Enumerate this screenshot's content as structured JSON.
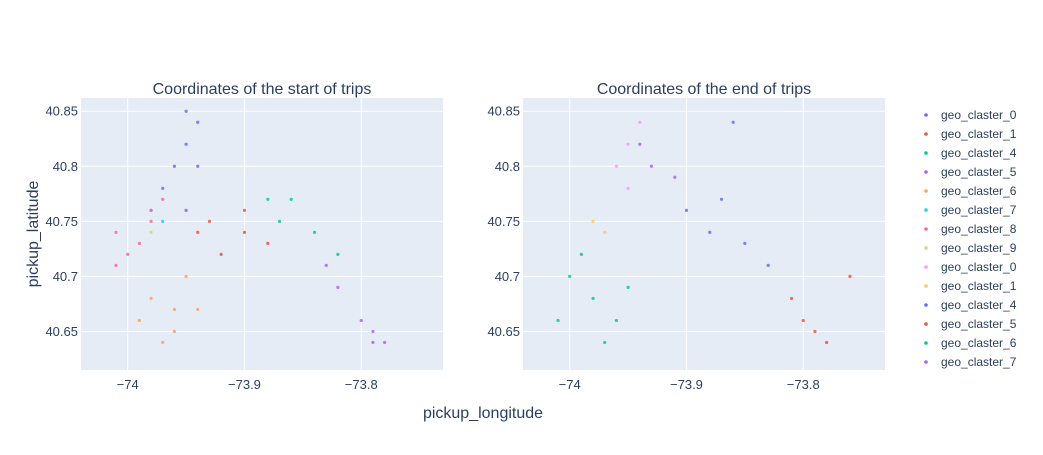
{
  "chart_data": [
    {
      "type": "scatter",
      "title": "Coordinates of the start of trips",
      "xlabel": "pickup_longitude",
      "ylabel": "pickup_latitude",
      "xlim": [
        -74.04,
        -73.73
      ],
      "ylim": [
        40.615,
        40.862
      ],
      "xticks": [
        -74.0,
        -73.9,
        -73.8
      ],
      "xtick_labels": [
        "−74",
        "−73.9",
        "−73.8"
      ],
      "yticks": [
        40.65,
        40.7,
        40.75,
        40.8,
        40.85
      ],
      "ytick_labels": [
        "40.65",
        "40.7",
        "40.75",
        "40.8",
        "40.85"
      ],
      "grid": true,
      "series": [
        {
          "name": "geo_claster_0",
          "color": "#636efa",
          "x": [
            -73.96,
            -73.95,
            -73.94,
            -73.97,
            -73.95,
            -73.94,
            -73.95
          ],
          "y": [
            40.8,
            40.82,
            40.84,
            40.78,
            40.76,
            40.8,
            40.85
          ]
        },
        {
          "name": "geo_claster_1",
          "color": "#ef553b",
          "x": [
            -73.93,
            -73.9,
            -73.88,
            -73.92,
            -73.9,
            -73.94
          ],
          "y": [
            40.75,
            40.74,
            40.73,
            40.72,
            40.76,
            40.74
          ]
        },
        {
          "name": "geo_claster_4",
          "color": "#00cc96",
          "x": [
            -73.88,
            -73.86,
            -73.84,
            -73.82,
            -73.87
          ],
          "y": [
            40.77,
            40.77,
            40.74,
            40.72,
            40.75
          ]
        },
        {
          "name": "geo_claster_5",
          "color": "#ab63fa",
          "x": [
            -73.8,
            -73.79,
            -73.78,
            -73.79,
            -73.82,
            -73.83
          ],
          "y": [
            40.66,
            40.65,
            40.64,
            40.64,
            40.69,
            40.71
          ]
        },
        {
          "name": "geo_claster_6",
          "color": "#ffa15a",
          "x": [
            -73.98,
            -73.96,
            -73.95,
            -73.99,
            -73.97,
            -73.94,
            -73.96
          ],
          "y": [
            40.68,
            40.67,
            40.7,
            40.66,
            40.64,
            40.67,
            40.65
          ]
        },
        {
          "name": "geo_claster_7",
          "color": "#19d3f3",
          "x": [
            -73.98,
            -73.97
          ],
          "y": [
            40.76,
            40.75
          ]
        },
        {
          "name": "geo_claster_8",
          "color": "#ff6692",
          "x": [
            -74.01,
            -73.99,
            -73.98,
            -73.97,
            -74.0,
            -74.01,
            -73.98
          ],
          "y": [
            40.71,
            40.73,
            40.75,
            40.77,
            40.72,
            40.74,
            40.76
          ]
        },
        {
          "name": "geo_claster_9",
          "color": "#b6e880",
          "x": [
            -73.98
          ],
          "y": [
            40.74
          ]
        }
      ]
    },
    {
      "type": "scatter",
      "title": "Coordinates of the end of trips",
      "xlabel": "pickup_longitude",
      "xlim": [
        -74.04,
        -73.73
      ],
      "ylim": [
        40.615,
        40.862
      ],
      "xticks": [
        -74.0,
        -73.9,
        -73.8
      ],
      "xtick_labels": [
        "−74",
        "−73.9",
        "−73.8"
      ],
      "yticks": [
        40.65,
        40.7,
        40.75,
        40.8,
        40.85
      ],
      "ytick_labels": [
        "40.65",
        "40.7",
        "40.75",
        "40.8",
        "40.85"
      ],
      "grid": true,
      "series": [
        {
          "name": "geo_claster_0",
          "color": "#ff97ff",
          "x": [
            -73.96,
            -73.95,
            -73.94,
            -73.95
          ],
          "y": [
            40.8,
            40.82,
            40.84,
            40.78
          ]
        },
        {
          "name": "geo_claster_1",
          "color": "#fecb52",
          "x": [
            -73.98,
            -73.97
          ],
          "y": [
            40.75,
            40.74
          ]
        },
        {
          "name": "geo_claster_4",
          "color": "#636efa",
          "x": [
            -73.9,
            -73.88,
            -73.85,
            -73.83,
            -73.86,
            -73.87
          ],
          "y": [
            40.76,
            40.74,
            40.73,
            40.71,
            40.84,
            40.77
          ]
        },
        {
          "name": "geo_claster_5",
          "color": "#ef553b",
          "x": [
            -73.8,
            -73.79,
            -73.78,
            -73.81,
            -73.76
          ],
          "y": [
            40.66,
            40.65,
            40.64,
            40.68,
            40.7
          ]
        },
        {
          "name": "geo_claster_6",
          "color": "#00cc96",
          "x": [
            -74.0,
            -73.98,
            -73.96,
            -73.97,
            -74.01,
            -73.95,
            -73.99
          ],
          "y": [
            40.7,
            40.68,
            40.66,
            40.64,
            40.66,
            40.69,
            40.72
          ]
        },
        {
          "name": "geo_claster_7",
          "color": "#ab63fa",
          "x": [
            -73.94,
            -73.93,
            -73.91
          ],
          "y": [
            40.82,
            40.8,
            40.79
          ]
        }
      ]
    }
  ],
  "legend": {
    "placement": "right",
    "entries": [
      {
        "label": "geo_claster_0",
        "color": "#636efa"
      },
      {
        "label": "geo_claster_1",
        "color": "#ef553b"
      },
      {
        "label": "geo_claster_4",
        "color": "#00cc96"
      },
      {
        "label": "geo_claster_5",
        "color": "#ab63fa"
      },
      {
        "label": "geo_claster_6",
        "color": "#ffa15a"
      },
      {
        "label": "geo_claster_7",
        "color": "#19d3f3"
      },
      {
        "label": "geo_claster_8",
        "color": "#ff6692"
      },
      {
        "label": "geo_claster_9",
        "color": "#b6e880"
      },
      {
        "label": "geo_claster_0",
        "color": "#ff97ff"
      },
      {
        "label": "geo_claster_1",
        "color": "#fecb52"
      },
      {
        "label": "geo_claster_4",
        "color": "#636efa"
      },
      {
        "label": "geo_claster_5",
        "color": "#ef553b"
      },
      {
        "label": "geo_claster_6",
        "color": "#00cc96"
      },
      {
        "label": "geo_claster_7",
        "color": "#ab63fa"
      }
    ]
  },
  "colors": {
    "plot_bg": "#e5ecf6",
    "grid": "#ffffff",
    "text": "#2a3f5f"
  }
}
